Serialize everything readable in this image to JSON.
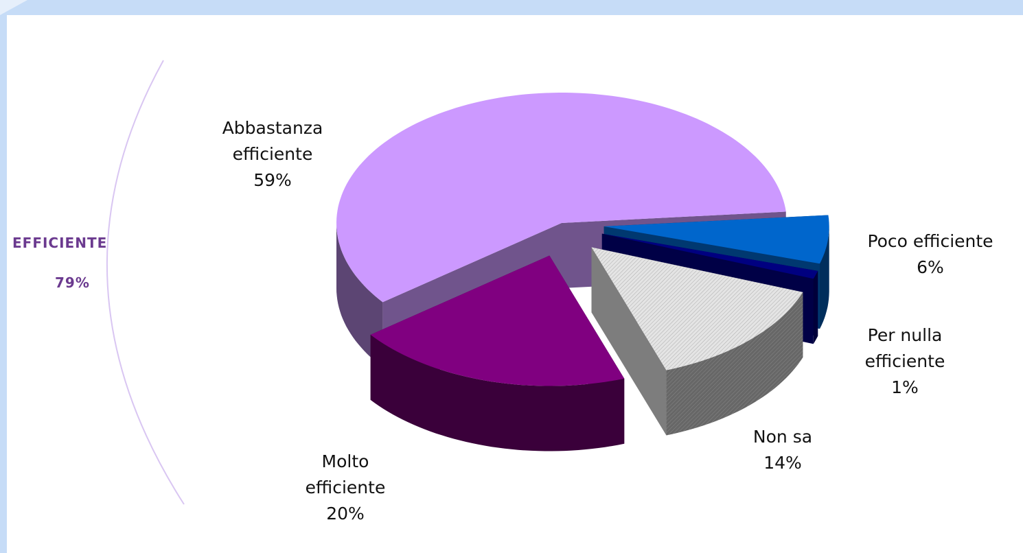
{
  "chart_data": {
    "type": "pie3d",
    "categories": [
      "Abbastanza efficiente",
      "Poco efficiente",
      "Per nulla efficiente",
      "Non sa",
      "Molto efficiente"
    ],
    "values": [
      59,
      6,
      1,
      14,
      20
    ],
    "value_labels": [
      "59%",
      "6%",
      "1%",
      "14%",
      "20%"
    ],
    "colors": [
      "#cc99ff",
      "#0066cc",
      "#000080",
      "#e4e4e4",
      "#800080"
    ],
    "annotation": {
      "title": "EFFICIENTE",
      "text": "79%"
    }
  }
}
